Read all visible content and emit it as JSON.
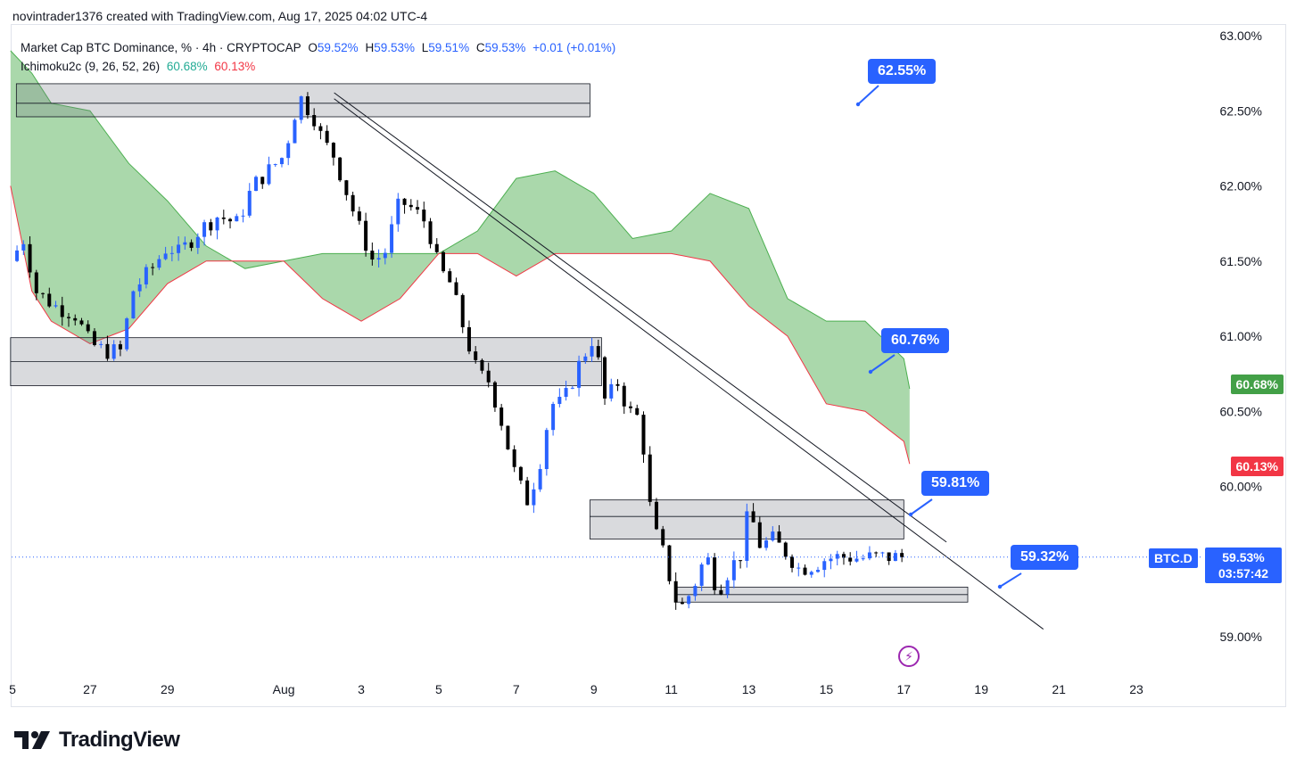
{
  "header": {
    "caption": "novintrader1376 created with TradingView.com, Aug 17, 2025 04:02 UTC-4"
  },
  "legend": {
    "symbol": "Market Cap BTC Dominance, % · 4h · CRYPTOCAP",
    "o_label": "O",
    "o_value": "59.52%",
    "h_label": "H",
    "h_value": "59.53%",
    "l_label": "L",
    "l_value": "59.51%",
    "c_label": "C",
    "c_value": "59.53%",
    "change": "+0.01 (+0.01%)",
    "indicator": "Ichimoku2c (9, 26, 52, 26)",
    "ind_val1": "60.68%",
    "ind_val2": "60.13%"
  },
  "callouts": {
    "c1": "62.55%",
    "c2": "60.76%",
    "c3": "59.81%",
    "c4": "59.32%"
  },
  "price_tags": {
    "ichimoku_a": "60.68%",
    "ichimoku_b": "60.13%",
    "ticker": "BTC.D",
    "current_price": "59.53%",
    "countdown": "03:57:42"
  },
  "colors": {
    "accent": "#2962ff",
    "bull": "#2962ff",
    "bear": "#000000",
    "cloud_bull": "#a5d6a7",
    "cloud_edge_a": "#4caf50",
    "cloud_edge_b": "#f23645",
    "zone": "#d1d4dc",
    "tag_green": "#43a047",
    "tag_red": "#f23645"
  },
  "branding": {
    "logo_text": "TradingView",
    "logo_icon": "tradingview-logo-icon",
    "alert_icon": "lightning-icon"
  },
  "chart_data": {
    "type": "candlestick",
    "ylabel": "%",
    "ylim": [
      58.8,
      63.0
    ],
    "y_ticks": [
      "63.00%",
      "62.50%",
      "62.00%",
      "61.50%",
      "61.00%",
      "60.50%",
      "60.00%",
      "59.00%"
    ],
    "y_tick_values": [
      63.0,
      62.5,
      62.0,
      61.5,
      61.0,
      60.5,
      60.0,
      59.0
    ],
    "x_ticks": [
      "5",
      "27",
      "29",
      "Aug",
      "3",
      "5",
      "7",
      "9",
      "11",
      "13",
      "15",
      "17",
      "19",
      "21",
      "23"
    ],
    "x_tick_days": [
      25,
      27,
      29,
      32,
      34,
      36,
      38,
      40,
      42,
      44,
      46,
      48,
      50,
      52,
      54
    ],
    "day_range": [
      24.95,
      55.4
    ],
    "close_path_days": [
      24.95,
      25.3,
      25.6,
      26.1,
      26.6,
      27.0,
      27.4,
      27.8,
      28.1,
      28.6,
      29.0,
      29.3,
      29.8,
      30.3,
      30.8,
      31.2,
      31.6,
      32.0,
      32.4,
      32.8,
      33.0,
      33.3,
      33.5,
      33.9,
      34.3,
      34.6,
      35.0,
      35.3,
      35.7,
      36.0,
      36.3,
      36.7,
      37.0,
      37.3,
      37.6,
      38.0,
      38.3,
      38.6,
      38.9,
      39.2,
      39.6,
      40.0,
      40.3,
      40.6,
      40.9,
      41.2,
      41.5,
      41.8,
      42.1,
      42.3,
      42.6,
      42.9,
      43.2,
      43.5,
      43.8,
      44.0,
      44.3,
      44.6,
      45.0,
      45.3,
      45.7,
      46.0,
      46.3,
      46.6,
      46.9,
      47.2,
      47.5,
      47.7,
      48.0
    ],
    "close_path_values": [
      61.5,
      61.65,
      61.3,
      61.2,
      61.15,
      60.95,
      60.9,
      60.9,
      61.3,
      61.45,
      61.6,
      61.55,
      61.7,
      61.8,
      61.75,
      62.0,
      62.1,
      62.2,
      62.6,
      62.45,
      62.3,
      62.2,
      62.05,
      61.75,
      61.5,
      61.55,
      61.9,
      61.85,
      61.75,
      61.45,
      61.35,
      61.0,
      60.75,
      60.7,
      60.45,
      60.05,
      59.9,
      60.15,
      60.55,
      60.55,
      60.8,
      61.0,
      60.55,
      60.7,
      60.5,
      60.45,
      59.75,
      59.55,
      59.25,
      59.2,
      59.35,
      59.55,
      59.3,
      59.45,
      59.55,
      59.85,
      59.6,
      59.65,
      59.55,
      59.45,
      59.48,
      59.52,
      59.53,
      59.53,
      59.52,
      59.53,
      59.53,
      59.53,
      59.53
    ],
    "ichimoku_cloud": {
      "span_a_days": [
        24.95,
        25.5,
        26.0,
        27.0,
        28.0,
        29.0,
        30.0,
        31.0,
        32.0,
        33.0,
        34.0,
        35.0,
        36.0,
        37.0,
        38.0,
        39.0,
        40.0,
        41.0,
        42.0,
        43.0,
        44.0,
        45.0,
        46.0,
        47.0,
        48.0,
        48.15
      ],
      "span_a_values": [
        62.9,
        62.75,
        62.55,
        62.5,
        62.15,
        61.9,
        61.6,
        61.45,
        61.5,
        61.55,
        61.55,
        61.55,
        61.55,
        61.7,
        62.05,
        62.1,
        61.95,
        61.65,
        61.7,
        61.95,
        61.85,
        61.25,
        61.1,
        61.1,
        60.85,
        60.65
      ],
      "span_b_days": [
        24.95,
        25.5,
        26.0,
        27.0,
        28.0,
        29.0,
        30.0,
        31.0,
        32.0,
        33.0,
        34.0,
        35.0,
        36.0,
        37.0,
        38.0,
        39.0,
        40.0,
        41.0,
        42.0,
        43.0,
        44.0,
        45.0,
        46.0,
        47.0,
        48.0,
        48.15
      ],
      "span_b_values": [
        62.0,
        61.3,
        61.1,
        60.95,
        61.05,
        61.35,
        61.5,
        61.5,
        61.5,
        61.25,
        61.1,
        61.25,
        61.55,
        61.55,
        61.4,
        61.55,
        61.55,
        61.55,
        61.55,
        61.5,
        61.2,
        61.0,
        60.55,
        60.5,
        60.3,
        60.15
      ]
    },
    "zones": [
      {
        "d1": 25.1,
        "d2": 39.9,
        "v1": 62.46,
        "v2": 62.68,
        "mid": 62.55
      },
      {
        "d1": 24.95,
        "d2": 40.2,
        "v1": 60.67,
        "v2": 60.99,
        "mid": 60.83
      },
      {
        "d1": 39.9,
        "d2": 48.0,
        "v1": 59.65,
        "v2": 59.91,
        "mid": 59.8
      },
      {
        "d1": 42.1,
        "d2": 49.65,
        "v1": 59.23,
        "v2": 59.33,
        "mid": 59.28
      }
    ],
    "trendlines": [
      {
        "d1": 33.3,
        "v1": 62.62,
        "d2": 49.1,
        "v2": 59.63
      },
      {
        "d1": 33.3,
        "v1": 62.58,
        "d2": 51.6,
        "v2": 59.05
      }
    ],
    "current_price": 59.53
  }
}
